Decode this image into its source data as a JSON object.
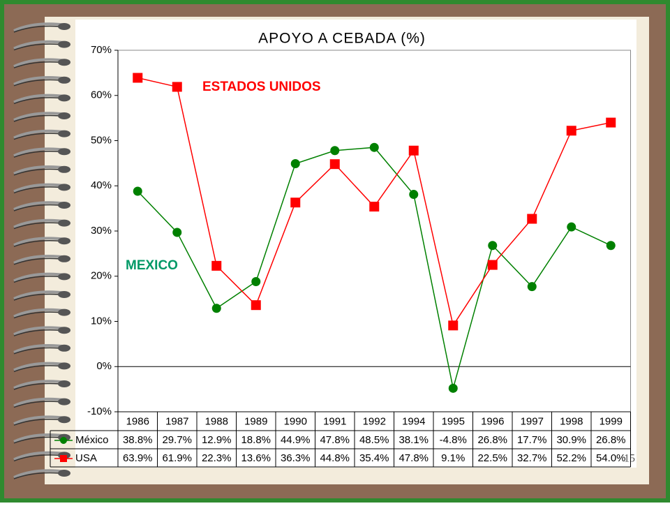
{
  "chart_data": {
    "type": "line",
    "title": "APOYO A CEBADA (%)",
    "categories": [
      "1986",
      "1987",
      "1988",
      "1989",
      "1990",
      "1991",
      "1992",
      "1994",
      "1995",
      "1996",
      "1997",
      "1998",
      "1999"
    ],
    "series": [
      {
        "name": "México",
        "color": "#008000",
        "marker": "circle",
        "values": [
          38.8,
          29.7,
          12.9,
          18.8,
          44.9,
          47.8,
          48.5,
          38.1,
          -4.8,
          26.8,
          17.7,
          30.9,
          26.8
        ],
        "value_labels": [
          "38.8%",
          "29.7%",
          "12.9%",
          "18.8%",
          "44.9%",
          "47.8%",
          "48.5%",
          "38.1%",
          "-4.8%",
          "26.8%",
          "17.7%",
          "30.9%",
          "26.8%"
        ]
      },
      {
        "name": "USA",
        "color": "#ff0000",
        "marker": "square",
        "values": [
          63.9,
          61.9,
          22.3,
          13.6,
          36.3,
          44.8,
          35.4,
          47.8,
          9.1,
          22.5,
          32.7,
          52.2,
          54.0
        ],
        "value_labels": [
          "63.9%",
          "61.9%",
          "22.3%",
          "13.6%",
          "36.3%",
          "44.8%",
          "35.4%",
          "47.8%",
          "9.1%",
          "22.5%",
          "32.7%",
          "52.2%",
          "54.0%"
        ]
      }
    ],
    "ylim": [
      -10,
      70
    ],
    "yticks": [
      {
        "value": -10,
        "label": "-10%"
      },
      {
        "value": 0,
        "label": "0%"
      },
      {
        "value": 10,
        "label": "10%"
      },
      {
        "value": 20,
        "label": "20%"
      },
      {
        "value": 30,
        "label": "30%"
      },
      {
        "value": 40,
        "label": "40%"
      },
      {
        "value": 50,
        "label": "50%"
      },
      {
        "value": 60,
        "label": "60%"
      },
      {
        "value": 70,
        "label": "70%"
      }
    ],
    "annotations": [
      {
        "text": "ESTADOS UNIDOS",
        "color": "#ff0000"
      },
      {
        "text": "MEXICO",
        "color": "#009966"
      }
    ],
    "slide_number": "15"
  }
}
